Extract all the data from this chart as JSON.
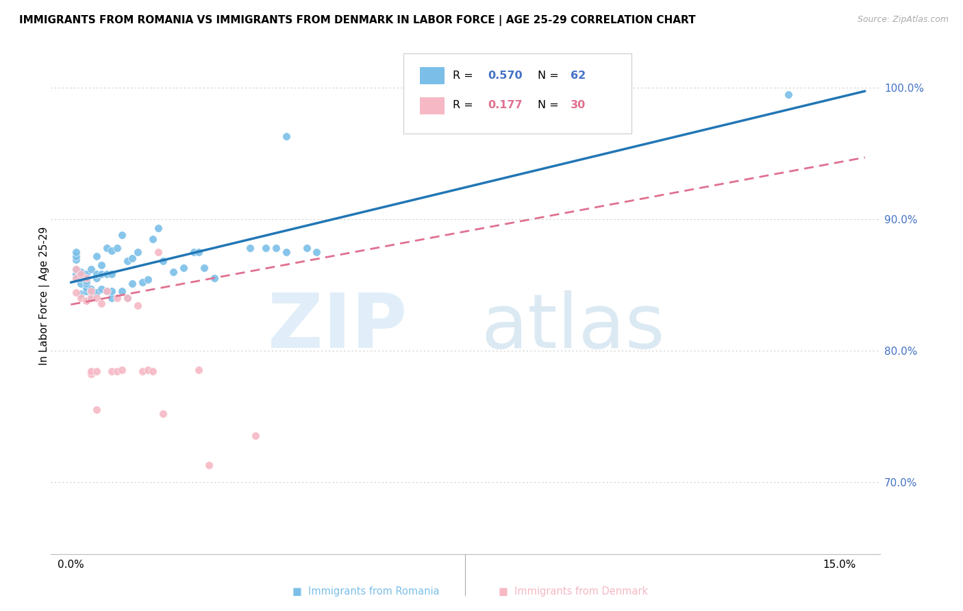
{
  "title": "IMMIGRANTS FROM ROMANIA VS IMMIGRANTS FROM DENMARK IN LABOR FORCE | AGE 25-29 CORRELATION CHART",
  "source": "Source: ZipAtlas.com",
  "ylabel": "In Labor Force | Age 25-29",
  "y_ticks": [
    0.7,
    0.8,
    0.9,
    1.0
  ],
  "y_tick_labels": [
    "70.0%",
    "80.0%",
    "90.0%",
    "100.0%"
  ],
  "romania_color": "#7bbfe8",
  "denmark_color": "#f5b8c4",
  "romania_line_color": "#2176b5",
  "denmark_line_color": "#e07090",
  "R_romania": 0.57,
  "N_romania": 62,
  "R_denmark": 0.177,
  "N_denmark": 30,
  "romania_x": [
    0.001,
    0.001,
    0.001,
    0.001,
    0.001,
    0.001,
    0.002,
    0.002,
    0.002,
    0.002,
    0.002,
    0.002,
    0.003,
    0.003,
    0.003,
    0.003,
    0.003,
    0.004,
    0.004,
    0.004,
    0.004,
    0.005,
    0.005,
    0.005,
    0.005,
    0.006,
    0.006,
    0.006,
    0.007,
    0.007,
    0.007,
    0.008,
    0.008,
    0.008,
    0.008,
    0.009,
    0.01,
    0.01,
    0.011,
    0.011,
    0.012,
    0.012,
    0.013,
    0.014,
    0.015,
    0.016,
    0.017,
    0.018,
    0.02,
    0.022,
    0.024,
    0.025,
    0.026,
    0.028,
    0.035,
    0.038,
    0.04,
    0.042,
    0.042,
    0.046,
    0.048,
    0.14
  ],
  "romania_y": [
    0.855,
    0.858,
    0.862,
    0.869,
    0.872,
    0.875,
    0.843,
    0.851,
    0.855,
    0.857,
    0.859,
    0.86,
    0.845,
    0.848,
    0.851,
    0.853,
    0.858,
    0.841,
    0.845,
    0.847,
    0.862,
    0.844,
    0.855,
    0.858,
    0.872,
    0.847,
    0.858,
    0.865,
    0.845,
    0.858,
    0.878,
    0.84,
    0.845,
    0.858,
    0.876,
    0.878,
    0.845,
    0.888,
    0.84,
    0.868,
    0.851,
    0.87,
    0.875,
    0.852,
    0.854,
    0.885,
    0.893,
    0.868,
    0.86,
    0.863,
    0.875,
    0.875,
    0.863,
    0.855,
    0.878,
    0.878,
    0.878,
    0.875,
    0.963,
    0.878,
    0.875,
    0.995
  ],
  "denmark_x": [
    0.001,
    0.001,
    0.001,
    0.002,
    0.002,
    0.003,
    0.003,
    0.004,
    0.004,
    0.004,
    0.004,
    0.005,
    0.005,
    0.005,
    0.006,
    0.007,
    0.008,
    0.009,
    0.009,
    0.01,
    0.011,
    0.013,
    0.014,
    0.015,
    0.016,
    0.017,
    0.018,
    0.025,
    0.027,
    0.036
  ],
  "denmark_y": [
    0.844,
    0.855,
    0.862,
    0.84,
    0.858,
    0.838,
    0.855,
    0.84,
    0.845,
    0.782,
    0.784,
    0.84,
    0.784,
    0.755,
    0.836,
    0.845,
    0.784,
    0.84,
    0.784,
    0.785,
    0.84,
    0.834,
    0.784,
    0.785,
    0.784,
    0.875,
    0.752,
    0.785,
    0.713,
    0.735
  ]
}
